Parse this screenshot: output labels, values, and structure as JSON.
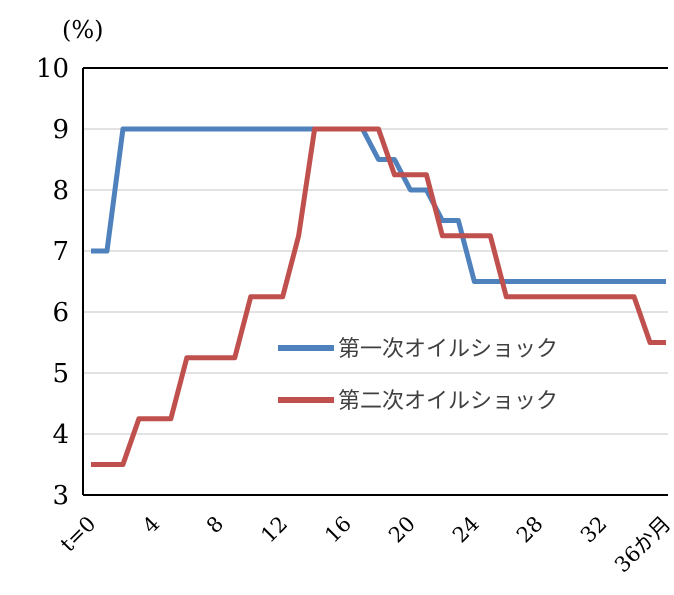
{
  "chart_data": {
    "type": "line",
    "unit_label": "(%)",
    "x": [
      0,
      1,
      2,
      3,
      4,
      5,
      6,
      7,
      8,
      9,
      10,
      11,
      12,
      13,
      14,
      15,
      16,
      17,
      18,
      19,
      20,
      21,
      22,
      23,
      24,
      25,
      26,
      27,
      28,
      29,
      30,
      31,
      32,
      33,
      34,
      35,
      36
    ],
    "x_tick_labels": [
      "t=0",
      "4",
      "8",
      "12",
      "16",
      "20",
      "24",
      "28",
      "32",
      "36か月"
    ],
    "x_tick_values": [
      0,
      4,
      8,
      12,
      16,
      20,
      24,
      28,
      32,
      36
    ],
    "y_ticks": [
      3,
      4,
      5,
      6,
      7,
      8,
      9,
      10
    ],
    "ylim": [
      3,
      10
    ],
    "xlim": [
      0,
      36
    ],
    "grid": "horizontal",
    "legend_position": "middle-right",
    "series": [
      {
        "name": "第一次オイルショック",
        "color": "#4F81BD",
        "values": [
          7,
          7,
          9,
          9,
          9,
          9,
          9,
          9,
          9,
          9,
          9,
          9,
          9,
          9,
          9,
          9,
          9,
          9,
          8.5,
          8.5,
          8,
          8,
          7.5,
          7.5,
          6.5,
          6.5,
          6.5,
          6.5,
          6.5,
          6.5,
          6.5,
          6.5,
          6.5,
          6.5,
          6.5,
          6.5,
          6.5
        ]
      },
      {
        "name": "第二次オイルショック",
        "color": "#C0504D",
        "values": [
          3.5,
          3.5,
          3.5,
          4.25,
          4.25,
          4.25,
          5.25,
          5.25,
          5.25,
          5.25,
          6.25,
          6.25,
          6.25,
          7.25,
          9,
          9,
          9,
          9,
          9,
          8.25,
          8.25,
          8.25,
          7.25,
          7.25,
          7.25,
          7.25,
          6.25,
          6.25,
          6.25,
          6.25,
          6.25,
          6.25,
          6.25,
          6.25,
          6.25,
          5.5,
          5.5
        ]
      }
    ]
  }
}
